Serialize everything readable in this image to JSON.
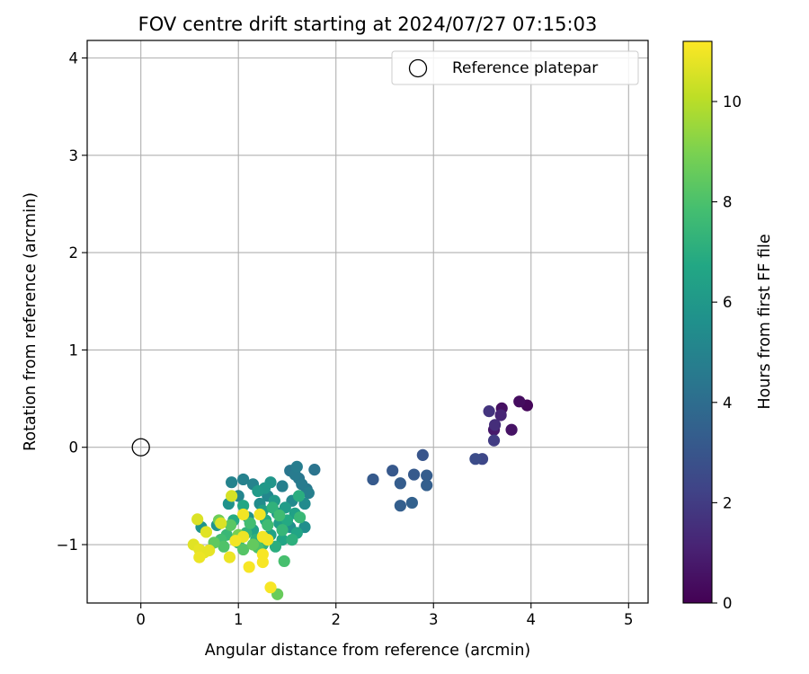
{
  "chart_data": {
    "type": "scatter",
    "title": "FOV centre drift starting at 2024/07/27 07:15:03",
    "xlabel": "Angular distance from reference (arcmin)",
    "ylabel": "Rotation from reference (arcmin)",
    "xlim": [
      -0.55,
      5.2
    ],
    "ylim": [
      -1.6,
      4.18
    ],
    "xticks": [
      0,
      1,
      2,
      3,
      4,
      5
    ],
    "yticks": [
      -1,
      0,
      1,
      2,
      3,
      4
    ],
    "xtick_labels": [
      "0",
      "1",
      "2",
      "3",
      "4",
      "5"
    ],
    "ytick_labels": [
      "−1",
      "0",
      "1",
      "2",
      "3",
      "4"
    ],
    "grid": true,
    "legend": {
      "placement": "top-right",
      "entries": [
        "Reference platepar"
      ]
    },
    "reference_point": {
      "x": 0,
      "y": 0
    },
    "colorbar": {
      "label": "Hours from first FF file",
      "range": [
        0,
        11.2
      ],
      "ticks": [
        0,
        2,
        4,
        6,
        8,
        10
      ],
      "tick_labels": [
        "0",
        "2",
        "4",
        "6",
        "8",
        "10"
      ],
      "colormap": "viridis"
    },
    "points": [
      {
        "x": 3.96,
        "y": 0.43,
        "h": 0.2
      },
      {
        "x": 3.88,
        "y": 0.47,
        "h": 0.4
      },
      {
        "x": 3.7,
        "y": 0.4,
        "h": 0.5
      },
      {
        "x": 3.8,
        "y": 0.18,
        "h": 0.6
      },
      {
        "x": 3.62,
        "y": 0.18,
        "h": 0.8
      },
      {
        "x": 3.69,
        "y": 0.33,
        "h": 1.2
      },
      {
        "x": 3.63,
        "y": 0.23,
        "h": 1.5
      },
      {
        "x": 3.57,
        "y": 0.37,
        "h": 1.7
      },
      {
        "x": 3.62,
        "y": 0.07,
        "h": 2.0
      },
      {
        "x": 3.5,
        "y": -0.12,
        "h": 2.4
      },
      {
        "x": 3.43,
        "y": -0.12,
        "h": 2.6
      },
      {
        "x": 2.89,
        "y": -0.08,
        "h": 3.0
      },
      {
        "x": 2.58,
        "y": -0.24,
        "h": 3.1
      },
      {
        "x": 2.38,
        "y": -0.33,
        "h": 3.2
      },
      {
        "x": 2.8,
        "y": -0.28,
        "h": 3.2
      },
      {
        "x": 2.93,
        "y": -0.29,
        "h": 3.3
      },
      {
        "x": 2.66,
        "y": -0.37,
        "h": 3.3
      },
      {
        "x": 2.93,
        "y": -0.39,
        "h": 3.4
      },
      {
        "x": 2.66,
        "y": -0.6,
        "h": 3.4
      },
      {
        "x": 2.78,
        "y": -0.57,
        "h": 3.5
      },
      {
        "x": 1.78,
        "y": -0.23,
        "h": 4.3
      },
      {
        "x": 1.53,
        "y": -0.24,
        "h": 4.4
      },
      {
        "x": 1.62,
        "y": -0.32,
        "h": 4.4
      },
      {
        "x": 1.7,
        "y": -0.43,
        "h": 4.5
      },
      {
        "x": 1.58,
        "y": -0.28,
        "h": 4.6
      },
      {
        "x": 1.65,
        "y": -0.38,
        "h": 4.6
      },
      {
        "x": 1.6,
        "y": -0.2,
        "h": 4.7
      },
      {
        "x": 1.72,
        "y": -0.47,
        "h": 4.8
      },
      {
        "x": 1.45,
        "y": -0.4,
        "h": 4.8
      },
      {
        "x": 1.05,
        "y": -0.33,
        "h": 4.9
      },
      {
        "x": 0.93,
        "y": -0.36,
        "h": 5.0
      },
      {
        "x": 1.15,
        "y": -0.38,
        "h": 5.0
      },
      {
        "x": 1.0,
        "y": -0.5,
        "h": 5.1
      },
      {
        "x": 1.3,
        "y": -0.5,
        "h": 5.2
      },
      {
        "x": 1.55,
        "y": -0.55,
        "h": 5.3
      },
      {
        "x": 1.68,
        "y": -0.58,
        "h": 5.3
      },
      {
        "x": 1.22,
        "y": -0.58,
        "h": 5.4
      },
      {
        "x": 1.4,
        "y": -0.68,
        "h": 5.5
      },
      {
        "x": 1.68,
        "y": -0.82,
        "h": 5.5
      },
      {
        "x": 1.53,
        "y": -0.82,
        "h": 5.6
      },
      {
        "x": 1.1,
        "y": -0.72,
        "h": 5.7
      },
      {
        "x": 0.9,
        "y": -0.58,
        "h": 5.7
      },
      {
        "x": 0.62,
        "y": -0.82,
        "h": 5.8
      },
      {
        "x": 0.78,
        "y": -0.8,
        "h": 5.8
      },
      {
        "x": 1.33,
        "y": -0.36,
        "h": 5.9
      },
      {
        "x": 1.27,
        "y": -0.42,
        "h": 6.0
      },
      {
        "x": 1.37,
        "y": -0.55,
        "h": 6.1
      },
      {
        "x": 1.2,
        "y": -0.45,
        "h": 6.1
      },
      {
        "x": 1.48,
        "y": -0.62,
        "h": 6.2
      },
      {
        "x": 1.42,
        "y": -0.78,
        "h": 6.3
      },
      {
        "x": 1.25,
        "y": -0.65,
        "h": 6.3
      },
      {
        "x": 1.58,
        "y": -0.68,
        "h": 6.4
      },
      {
        "x": 1.15,
        "y": -0.85,
        "h": 6.5
      },
      {
        "x": 1.33,
        "y": -0.9,
        "h": 6.5
      },
      {
        "x": 1.6,
        "y": -0.88,
        "h": 6.6
      },
      {
        "x": 1.45,
        "y": -0.95,
        "h": 6.6
      },
      {
        "x": 1.05,
        "y": -0.6,
        "h": 6.7
      },
      {
        "x": 1.28,
        "y": -0.75,
        "h": 6.8
      },
      {
        "x": 1.5,
        "y": -0.75,
        "h": 6.8
      },
      {
        "x": 0.95,
        "y": -0.75,
        "h": 6.9
      },
      {
        "x": 1.38,
        "y": -1.02,
        "h": 7.0
      },
      {
        "x": 1.62,
        "y": -0.5,
        "h": 7.0
      },
      {
        "x": 1.18,
        "y": -0.95,
        "h": 7.1
      },
      {
        "x": 1.55,
        "y": -0.95,
        "h": 7.1
      },
      {
        "x": 1.35,
        "y": -0.62,
        "h": 7.2
      },
      {
        "x": 1.08,
        "y": -0.88,
        "h": 7.3
      },
      {
        "x": 1.25,
        "y": -1.0,
        "h": 7.3
      },
      {
        "x": 1.45,
        "y": -0.85,
        "h": 7.4
      },
      {
        "x": 1.63,
        "y": -0.72,
        "h": 7.5
      },
      {
        "x": 0.88,
        "y": -0.9,
        "h": 7.5
      },
      {
        "x": 1.0,
        "y": -0.98,
        "h": 7.6
      },
      {
        "x": 1.3,
        "y": -0.8,
        "h": 7.7
      },
      {
        "x": 1.42,
        "y": -0.7,
        "h": 7.7
      },
      {
        "x": 0.82,
        "y": -0.95,
        "h": 7.8
      },
      {
        "x": 1.12,
        "y": -0.78,
        "h": 7.8
      },
      {
        "x": 1.47,
        "y": -1.17,
        "h": 7.9
      },
      {
        "x": 1.2,
        "y": -1.03,
        "h": 8.0
      },
      {
        "x": 0.85,
        "y": -1.02,
        "h": 8.1
      },
      {
        "x": 1.05,
        "y": -1.05,
        "h": 8.2
      },
      {
        "x": 0.92,
        "y": -0.8,
        "h": 8.3
      },
      {
        "x": 0.75,
        "y": -0.98,
        "h": 8.4
      },
      {
        "x": 1.15,
        "y": -1.0,
        "h": 8.5
      },
      {
        "x": 1.4,
        "y": -1.51,
        "h": 8.6
      },
      {
        "x": 0.8,
        "y": -0.75,
        "h": 8.7
      },
      {
        "x": 1.0,
        "y": -0.9,
        "h": 8.9
      },
      {
        "x": 0.93,
        "y": -0.5,
        "h": 10.5
      },
      {
        "x": 0.58,
        "y": -0.74,
        "h": 10.6
      },
      {
        "x": 0.82,
        "y": -0.78,
        "h": 10.6
      },
      {
        "x": 0.67,
        "y": -0.87,
        "h": 10.7
      },
      {
        "x": 0.54,
        "y": -1.0,
        "h": 10.7
      },
      {
        "x": 0.6,
        "y": -1.05,
        "h": 10.8
      },
      {
        "x": 0.65,
        "y": -1.08,
        "h": 10.8
      },
      {
        "x": 0.7,
        "y": -1.06,
        "h": 10.8
      },
      {
        "x": 0.6,
        "y": -1.13,
        "h": 10.9
      },
      {
        "x": 0.91,
        "y": -1.13,
        "h": 10.9
      },
      {
        "x": 1.05,
        "y": -0.92,
        "h": 10.9
      },
      {
        "x": 0.97,
        "y": -0.96,
        "h": 11.0
      },
      {
        "x": 1.05,
        "y": -0.69,
        "h": 11.0
      },
      {
        "x": 1.22,
        "y": -0.69,
        "h": 11.0
      },
      {
        "x": 1.25,
        "y": -0.92,
        "h": 11.0
      },
      {
        "x": 1.3,
        "y": -0.95,
        "h": 11.0
      },
      {
        "x": 1.25,
        "y": -1.1,
        "h": 11.1
      },
      {
        "x": 1.25,
        "y": -1.18,
        "h": 11.1
      },
      {
        "x": 1.11,
        "y": -1.23,
        "h": 11.1
      },
      {
        "x": 1.33,
        "y": -1.44,
        "h": 11.1
      }
    ]
  }
}
